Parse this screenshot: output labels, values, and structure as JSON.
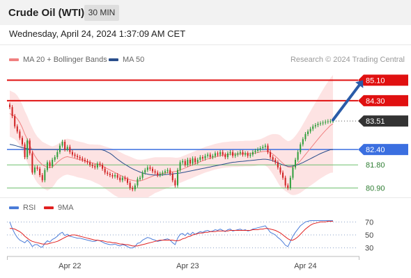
{
  "header": {
    "title": "Crude Oil (WTI)",
    "timeframe": "30 MIN"
  },
  "timestamp": "Wednesday, April 24, 2024 1:37:09 AM CET",
  "credit": "Research © 2024 Trading Central",
  "legend": {
    "main": [
      {
        "label": "MA 20 + Bollinger Bands",
        "color": "#f08080"
      },
      {
        "label": "MA 50",
        "color": "#2a4e8c"
      }
    ],
    "rsi": [
      {
        "label": "RSI",
        "color": "#4a7bd8"
      },
      {
        "label": "9MA",
        "color": "#e02020"
      }
    ]
  },
  "colors": {
    "up": "#2e9e3a",
    "down": "#d02020",
    "resistance": "#e01010",
    "pivot": "#3b6fe0",
    "support": "#6fbf6f",
    "bands": "#fde3e3",
    "ma20": "#f08080",
    "ma50": "#2a4e8c",
    "current": "#333333",
    "arrow": "#2a5ba8",
    "rsi": "#4a7bd8",
    "rsi_ma": "#e02020"
  },
  "chart_data": [
    {
      "type": "candlestick",
      "title": "Crude Oil (WTI)",
      "timeframe": "30 MIN",
      "ylim": [
        80.75,
        85.3
      ],
      "x_tick_labels": [
        "Apr 22",
        "Apr 23",
        "Apr 24"
      ],
      "x_tick_bars": [
        24,
        71,
        118
      ],
      "levels": [
        {
          "label": "85.10",
          "value": 85.1,
          "kind": "resistance"
        },
        {
          "label": "84.30",
          "value": 84.3,
          "kind": "resistance"
        },
        {
          "label": "83.51",
          "value": 83.51,
          "kind": "current"
        },
        {
          "label": "82.40",
          "value": 82.4,
          "kind": "pivot"
        },
        {
          "label": "81.80",
          "value": 81.8,
          "kind": "support"
        },
        {
          "label": "80.90",
          "value": 80.9,
          "kind": "support"
        }
      ],
      "forecast_arrow": {
        "from_bar": 129,
        "from_price": 83.55,
        "to_bar": 141,
        "to_price": 85.1
      },
      "close": [
        84.05,
        83.7,
        83.3,
        83.1,
        82.85,
        82.6,
        82.1,
        82.75,
        82.25,
        81.5,
        81.7,
        81.65,
        81.4,
        81.2,
        81.6,
        81.9,
        81.75,
        82.0,
        82.1,
        82.3,
        82.55,
        82.7,
        82.4,
        82.5,
        82.3,
        82.2,
        82.15,
        82.1,
        82.05,
        82.0,
        81.95,
        81.9,
        81.8,
        81.75,
        81.7,
        81.85,
        81.8,
        81.65,
        81.5,
        81.45,
        81.4,
        81.35,
        81.4,
        81.3,
        81.2,
        81.3,
        81.25,
        81.1,
        80.9,
        80.85,
        81.0,
        81.25,
        81.3,
        81.5,
        81.6,
        81.7,
        81.65,
        81.55,
        81.5,
        81.4,
        81.45,
        81.5,
        81.55,
        81.6,
        81.45,
        81.2,
        81.0,
        81.6,
        81.9,
        81.95,
        81.8,
        82.0,
        81.85,
        82.05,
        81.9,
        82.0,
        82.1,
        82.05,
        82.15,
        82.2,
        82.1,
        82.15,
        82.25,
        82.2,
        82.3,
        82.2,
        82.1,
        82.25,
        82.3,
        82.15,
        82.2,
        82.25,
        82.3,
        82.2,
        82.25,
        82.15,
        82.2,
        82.3,
        82.35,
        82.4,
        82.45,
        82.5,
        82.55,
        82.3,
        82.1,
        82.0,
        81.9,
        81.7,
        81.5,
        81.3,
        81.0,
        80.9,
        81.3,
        81.7,
        82.0,
        82.3,
        82.6,
        82.8,
        83.0,
        83.1,
        83.2,
        83.3,
        83.35,
        83.4,
        83.42,
        83.45,
        83.48,
        83.5,
        83.51,
        83.51
      ],
      "ma20": [
        83.8,
        83.75,
        83.7,
        83.6,
        83.45,
        83.25,
        83.0,
        82.8,
        82.55,
        82.35,
        82.15,
        82.0,
        81.9,
        81.8,
        81.75,
        81.7,
        81.7,
        81.72,
        81.8,
        81.9,
        81.98,
        82.05,
        82.1,
        82.12,
        82.1,
        82.08,
        82.05,
        82.02,
        82.0,
        81.98,
        81.95,
        81.92,
        81.9,
        81.88,
        81.85,
        81.83,
        81.8,
        81.75,
        81.7,
        81.65,
        81.6,
        81.55,
        81.5,
        81.45,
        81.4,
        81.35,
        81.3,
        81.26,
        81.22,
        81.2,
        81.18,
        81.17,
        81.18,
        81.2,
        81.24,
        81.28,
        81.32,
        81.36,
        81.4,
        81.42,
        81.44,
        81.46,
        81.48,
        81.5,
        81.52,
        81.53,
        81.54,
        81.56,
        81.6,
        81.64,
        81.68,
        81.72,
        81.76,
        81.8,
        81.84,
        81.88,
        81.92,
        81.96,
        82.0,
        82.03,
        82.06,
        82.09,
        82.12,
        82.14,
        82.16,
        82.18,
        82.19,
        82.2,
        82.21,
        82.22,
        82.22,
        82.22,
        82.23,
        82.23,
        82.24,
        82.24,
        82.24,
        82.25,
        82.26,
        82.28,
        82.3,
        82.32,
        82.33,
        82.32,
        82.28,
        82.22,
        82.14,
        82.05,
        81.95,
        81.86,
        81.78,
        81.72,
        81.7,
        81.72,
        81.78,
        81.86,
        81.96,
        82.08,
        82.2,
        82.32,
        82.44,
        82.56,
        82.68,
        82.8,
        82.92,
        83.03,
        83.14,
        83.24,
        83.34,
        83.4
      ],
      "ma50": [
        82.6,
        82.58,
        82.56,
        82.53,
        82.5,
        82.47,
        82.45,
        82.43,
        82.42,
        82.41,
        82.4,
        82.4,
        82.4,
        82.4,
        82.4,
        82.4,
        82.4,
        82.4,
        82.4,
        82.4,
        82.4,
        82.4,
        82.4,
        82.4,
        82.4,
        82.4,
        82.4,
        82.4,
        82.4,
        82.4,
        82.4,
        82.4,
        82.4,
        82.4,
        82.4,
        82.4,
        82.4,
        82.38,
        82.35,
        82.3,
        82.25,
        82.18,
        82.1,
        82.02,
        81.95,
        81.88,
        81.82,
        81.76,
        81.7,
        81.65,
        81.6,
        81.56,
        81.52,
        81.49,
        81.46,
        81.44,
        81.42,
        81.41,
        81.4,
        81.4,
        81.4,
        81.41,
        81.42,
        81.43,
        81.44,
        81.45,
        81.46,
        81.47,
        81.48,
        81.5,
        81.52,
        81.54,
        81.56,
        81.58,
        81.6,
        81.62,
        81.64,
        81.66,
        81.68,
        81.7,
        81.72,
        81.74,
        81.76,
        81.78,
        81.8,
        81.82,
        81.84,
        81.86,
        81.88,
        81.9,
        81.91,
        81.92,
        81.93,
        81.94,
        81.95,
        81.96,
        81.97,
        81.98,
        81.99,
        82.0,
        82.01,
        82.02,
        82.02,
        82.01,
        81.99,
        81.96,
        81.92,
        81.88,
        81.84,
        81.8,
        81.77,
        81.75,
        81.75,
        81.76,
        81.78,
        81.81,
        81.85,
        81.89,
        81.94,
        81.99,
        82.04,
        82.09,
        82.14,
        82.19,
        82.24,
        82.28,
        82.32,
        82.36,
        82.39,
        82.4
      ],
      "band_width": [
        0.9,
        0.9,
        0.9,
        0.9,
        0.9,
        0.9,
        0.9,
        0.9,
        0.9,
        0.9,
        0.9,
        0.9,
        0.9,
        0.9,
        0.9,
        0.9,
        0.85,
        0.8,
        0.75,
        0.7,
        0.7,
        0.7,
        0.7,
        0.7,
        0.7,
        0.7,
        0.7,
        0.7,
        0.7,
        0.7,
        0.7,
        0.7,
        0.7,
        0.72,
        0.74,
        0.76,
        0.78,
        0.8,
        0.82,
        0.84,
        0.86,
        0.88,
        0.9,
        0.9,
        0.9,
        0.9,
        0.9,
        0.9,
        0.9,
        0.88,
        0.86,
        0.84,
        0.82,
        0.8,
        0.78,
        0.76,
        0.74,
        0.72,
        0.7,
        0.68,
        0.66,
        0.64,
        0.62,
        0.6,
        0.58,
        0.56,
        0.54,
        0.52,
        0.5,
        0.5,
        0.5,
        0.5,
        0.5,
        0.5,
        0.5,
        0.5,
        0.5,
        0.5,
        0.5,
        0.5,
        0.5,
        0.5,
        0.5,
        0.5,
        0.5,
        0.5,
        0.5,
        0.5,
        0.5,
        0.5,
        0.5,
        0.5,
        0.5,
        0.5,
        0.5,
        0.5,
        0.5,
        0.5,
        0.5,
        0.5,
        0.5,
        0.52,
        0.56,
        0.62,
        0.7,
        0.78,
        0.86,
        0.94,
        1.0,
        1.0,
        1.0,
        1.0,
        1.05,
        1.1,
        1.15,
        1.2,
        1.25,
        1.3,
        1.35,
        1.4,
        1.45,
        1.5,
        1.55,
        1.6,
        1.65,
        1.7,
        1.75,
        1.8,
        1.85,
        1.9
      ]
    },
    {
      "type": "line",
      "title": "RSI",
      "ylim": [
        20,
        80
      ],
      "y_ticks": [
        30,
        50,
        70
      ],
      "series": [
        {
          "name": "RSI",
          "values": [
            70,
            60,
            52,
            46,
            42,
            40,
            38,
            42,
            38,
            32,
            35,
            35,
            32,
            31,
            37,
            41,
            39,
            43,
            45,
            48,
            52,
            54,
            49,
            51,
            48,
            47,
            46,
            45,
            45,
            44,
            43,
            42,
            41,
            40,
            40,
            42,
            41,
            39,
            37,
            36,
            35,
            35,
            36,
            34,
            33,
            35,
            34,
            32,
            30,
            30,
            32,
            37,
            38,
            42,
            44,
            46,
            45,
            43,
            42,
            40,
            41,
            42,
            43,
            44,
            42,
            38,
            35,
            45,
            51,
            52,
            49,
            53,
            50,
            54,
            51,
            53,
            55,
            54,
            56,
            57,
            55,
            56,
            58,
            57,
            59,
            57,
            55,
            58,
            59,
            56,
            57,
            58,
            59,
            57,
            58,
            56,
            57,
            59,
            60,
            61,
            62,
            63,
            64,
            59,
            54,
            52,
            50,
            46,
            43,
            39,
            34,
            32,
            40,
            48,
            54,
            59,
            64,
            67,
            70,
            71,
            72,
            72,
            72,
            72,
            72,
            72,
            72,
            72,
            72,
            72
          ]
        },
        {
          "name": "9MA",
          "values": [
            60,
            60,
            59,
            57,
            55,
            52,
            48,
            45,
            42,
            40,
            39,
            38,
            37,
            36,
            36,
            36,
            37,
            38,
            39,
            40,
            42,
            44,
            46,
            48,
            49,
            50,
            50,
            49,
            48,
            47,
            46,
            45,
            44,
            43,
            42,
            42,
            41,
            41,
            40,
            39,
            39,
            38,
            38,
            37,
            36,
            36,
            35,
            35,
            34,
            33,
            33,
            33,
            34,
            35,
            36,
            37,
            38,
            39,
            40,
            41,
            42,
            42,
            42,
            42,
            42,
            42,
            41,
            41,
            42,
            44,
            45,
            47,
            48,
            50,
            51,
            52,
            53,
            53,
            54,
            54,
            55,
            55,
            55,
            56,
            56,
            56,
            56,
            56,
            57,
            57,
            57,
            57,
            57,
            57,
            57,
            57,
            57,
            58,
            58,
            58,
            59,
            59,
            60,
            60,
            59,
            58,
            57,
            55,
            53,
            50,
            47,
            44,
            42,
            42,
            44,
            47,
            51,
            55,
            59,
            62,
            65,
            67,
            68,
            69,
            70,
            70,
            70,
            71,
            71,
            71
          ]
        }
      ]
    }
  ]
}
